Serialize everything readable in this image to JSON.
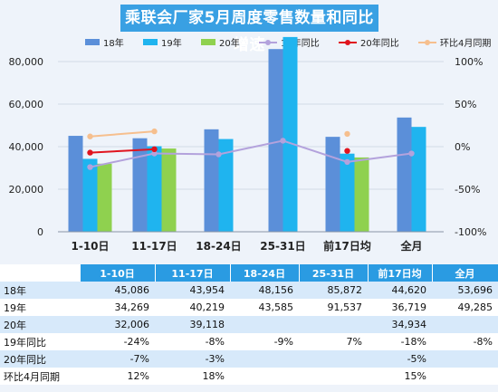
{
  "title": "乘联会厂家5月周度零售数量和同比增速",
  "legend": [
    {
      "name": "18年",
      "kind": "bar",
      "color": "#5b8fd9"
    },
    {
      "name": "19年",
      "kind": "bar",
      "color": "#1fb4ef"
    },
    {
      "name": "20年",
      "kind": "bar",
      "color": "#8fd14f"
    },
    {
      "name": "19年同比",
      "kind": "line",
      "color": "#b3a2dc"
    },
    {
      "name": "20年同比",
      "kind": "line",
      "color": "#e0141e"
    },
    {
      "name": "环比4月同期",
      "kind": "line",
      "color": "#f6bf8e"
    }
  ],
  "chart_data": {
    "type": "bar",
    "categories": [
      "1-10日",
      "11-17日",
      "18-24日",
      "25-31日",
      "前17日均",
      "全月"
    ],
    "y_left": {
      "min": 0,
      "max": 80000,
      "ticks": [
        "0",
        "20,000",
        "40,000",
        "60,000",
        "80,000"
      ],
      "tick_values": [
        0,
        20000,
        40000,
        60000,
        80000
      ]
    },
    "y_right": {
      "min": -100,
      "max": 100,
      "ticks": [
        "-100%",
        "-50%",
        "0%",
        "50%",
        "100%"
      ],
      "tick_values": [
        -100,
        -50,
        0,
        50,
        100
      ]
    },
    "bar_series": [
      {
        "name": "18年",
        "color": "#5b8fd9",
        "values": [
          45086,
          43954,
          48156,
          85872,
          44620,
          53696
        ]
      },
      {
        "name": "19年",
        "color": "#1fb4ef",
        "values": [
          34269,
          40219,
          43585,
          91537,
          36719,
          49285
        ]
      },
      {
        "name": "20年",
        "color": "#8fd14f",
        "values": [
          32006,
          39118,
          null,
          null,
          34934,
          null
        ]
      }
    ],
    "line_series": [
      {
        "name": "19年同比",
        "color": "#b3a2dc",
        "values": [
          -24,
          -8,
          -9,
          7,
          -18,
          -8
        ],
        "connected": true
      },
      {
        "name": "20年同比",
        "color": "#e0141e",
        "values": [
          -7,
          -3,
          null,
          null,
          -5,
          null
        ],
        "connected": false
      },
      {
        "name": "环比4月同期",
        "color": "#f6bf8e",
        "values": [
          12,
          18,
          null,
          null,
          15,
          null
        ],
        "connected": false
      }
    ]
  },
  "table": {
    "header": [
      "1-10日",
      "11-17日",
      "18-24日",
      "25-31日",
      "前17日均",
      "全月"
    ],
    "rows": [
      {
        "label": "18年",
        "cells": [
          "45,086",
          "43,954",
          "48,156",
          "85,872",
          "44,620",
          "53,696"
        ]
      },
      {
        "label": "19年",
        "cells": [
          "34,269",
          "40,219",
          "43,585",
          "91,537",
          "36,719",
          "49,285"
        ]
      },
      {
        "label": "20年",
        "cells": [
          "32,006",
          "39,118",
          "",
          "",
          "34,934",
          ""
        ]
      },
      {
        "label": "19年同比",
        "cells": [
          "-24%",
          "-8%",
          "-9%",
          "7%",
          "-18%",
          "-8%"
        ]
      },
      {
        "label": "20年同比",
        "cells": [
          "-7%",
          "-3%",
          "",
          "",
          "-5%",
          ""
        ]
      },
      {
        "label": "环比4月同期",
        "cells": [
          "12%",
          "18%",
          "",
          "",
          "15%",
          ""
        ]
      }
    ]
  }
}
